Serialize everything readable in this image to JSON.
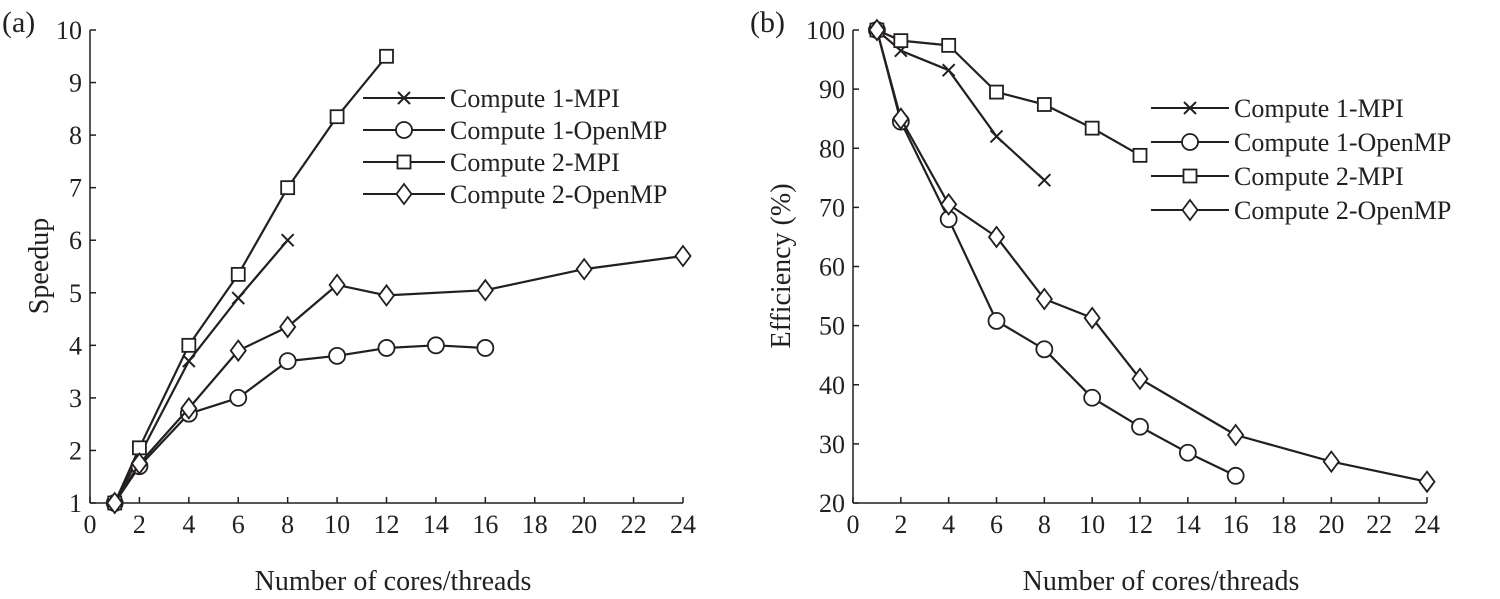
{
  "chart_data": [
    {
      "type": "line",
      "panel_label": "(a)",
      "xlabel": "Number of cores/threads",
      "ylabel": "Speedup",
      "xlim": [
        0,
        24
      ],
      "ylim": [
        1,
        10
      ],
      "xticks": [
        0,
        2,
        4,
        6,
        8,
        10,
        12,
        14,
        16,
        18,
        20,
        22,
        24
      ],
      "yticks": [
        1,
        2,
        3,
        4,
        5,
        6,
        7,
        8,
        9,
        10
      ],
      "legend_position": "top-right",
      "series": [
        {
          "name": "Compute 1-MPI",
          "marker": "x",
          "x": [
            1,
            2,
            4,
            6,
            8
          ],
          "y": [
            1.0,
            1.9,
            3.7,
            4.9,
            6.0
          ]
        },
        {
          "name": "Compute 1-OpenMP",
          "marker": "circle",
          "x": [
            1,
            2,
            4,
            6,
            8,
            10,
            12,
            14,
            16
          ],
          "y": [
            1.0,
            1.7,
            2.7,
            3.0,
            3.7,
            3.8,
            3.95,
            4.0,
            3.95
          ]
        },
        {
          "name": "Compute 2-MPI",
          "marker": "square",
          "x": [
            1,
            2,
            4,
            6,
            8,
            10,
            12
          ],
          "y": [
            1.0,
            2.05,
            4.0,
            5.35,
            7.0,
            8.35,
            9.5
          ]
        },
        {
          "name": "Compute 2-OpenMP",
          "marker": "diamond",
          "x": [
            1,
            2,
            4,
            6,
            8,
            10,
            12,
            16,
            20,
            24
          ],
          "y": [
            1.0,
            1.75,
            2.8,
            3.9,
            4.35,
            5.15,
            4.95,
            5.05,
            5.45,
            5.7
          ]
        }
      ]
    },
    {
      "type": "line",
      "panel_label": "(b)",
      "xlabel": "Number of cores/threads",
      "ylabel": "Efficiency (%)",
      "xlim": [
        0,
        24
      ],
      "ylim": [
        20,
        100
      ],
      "xticks": [
        0,
        2,
        4,
        6,
        8,
        10,
        12,
        14,
        16,
        18,
        20,
        22,
        24
      ],
      "yticks": [
        20,
        30,
        40,
        50,
        60,
        70,
        80,
        90,
        100
      ],
      "legend_position": "top-right",
      "series": [
        {
          "name": "Compute 1-MPI",
          "marker": "x",
          "x": [
            1,
            2,
            4,
            6,
            8
          ],
          "y": [
            100,
            96.5,
            93.2,
            82.0,
            74.6
          ]
        },
        {
          "name": "Compute 1-OpenMP",
          "marker": "circle",
          "x": [
            1,
            2,
            4,
            6,
            8,
            10,
            12,
            14,
            16
          ],
          "y": [
            100,
            84.5,
            68.0,
            50.8,
            46.0,
            37.8,
            32.9,
            28.5,
            24.6
          ]
        },
        {
          "name": "Compute 2-MPI",
          "marker": "square",
          "x": [
            1,
            2,
            4,
            6,
            8,
            10,
            12
          ],
          "y": [
            100,
            98.2,
            97.4,
            89.5,
            87.4,
            83.4,
            78.8
          ]
        },
        {
          "name": "Compute 2-OpenMP",
          "marker": "diamond",
          "x": [
            1,
            2,
            4,
            6,
            8,
            10,
            12,
            16,
            20,
            24
          ],
          "y": [
            100,
            85.0,
            70.5,
            65.0,
            54.5,
            51.3,
            41.0,
            31.5,
            27.0,
            23.6
          ]
        }
      ]
    }
  ]
}
